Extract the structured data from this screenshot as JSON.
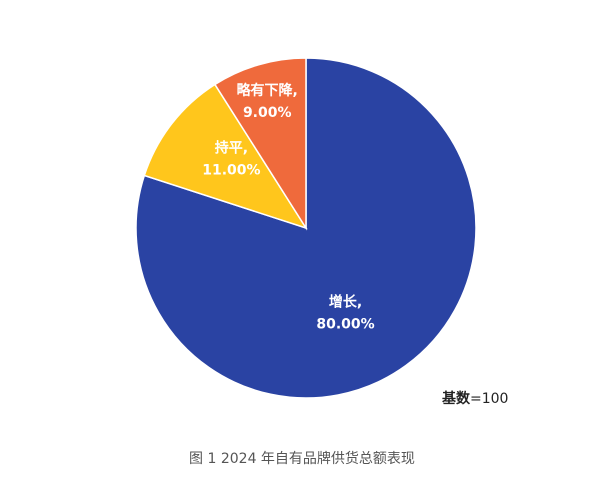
{
  "chart_data": {
    "type": "pie",
    "slices": [
      {
        "name": "增长,",
        "value": 80.0,
        "label": "80.00%",
        "color": "#2a43a3"
      },
      {
        "name": "持平,",
        "value": 11.0,
        "label": "11.00%",
        "color": "#ffc61c"
      },
      {
        "name": "略有下降,",
        "value": 9.0,
        "label": "9.00%",
        "color": "#ef6a3c"
      }
    ]
  },
  "base_note": {
    "label": "基数",
    "value": "=100"
  },
  "caption": "图 1 2024 年自有品牌供货总额表现"
}
